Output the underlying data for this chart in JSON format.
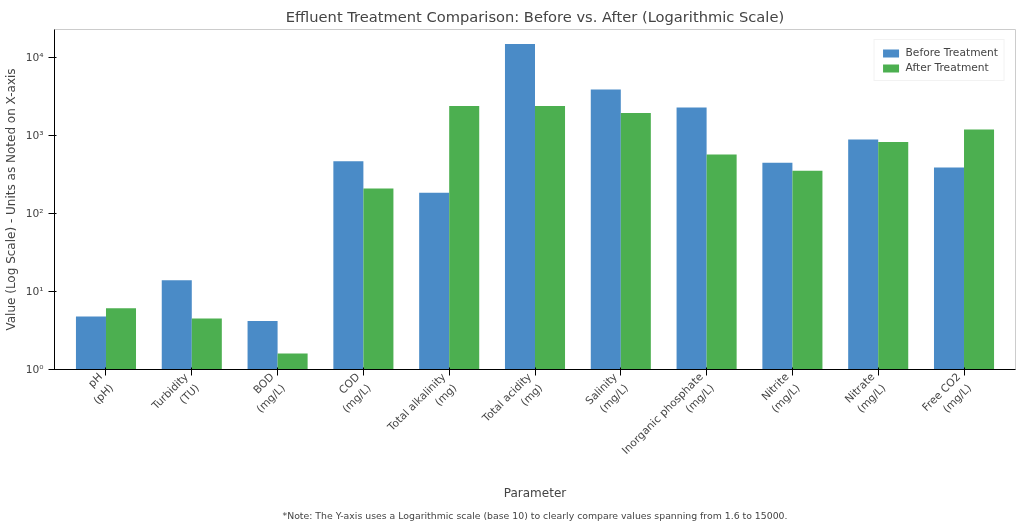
{
  "chart_data": {
    "type": "bar",
    "title": "Effluent Treatment Comparison: Before vs. After (Logarithmic Scale)",
    "xlabel": "Parameter",
    "ylabel": "Value (Log Scale) - Units as Noted on X-axis",
    "categories": [
      "pH\n(pH)",
      "Turbidity\n(TU)",
      "BOD\n(mg/L)",
      "COD\n(mg/L)",
      "Total alkalinity\n(mg)",
      "Total acidity\n(mg)",
      "Salinity\n(mg/L)",
      "Inorganic phosphate\n(mg/L)",
      "Nitrite\n(mg/L)",
      "Nitrate\n(mg/L)",
      "Free CO2\n(mg/L)"
    ],
    "series": [
      {
        "name": "Before Treatment",
        "color": "#4a8bc7",
        "values": [
          4.8,
          14,
          4.2,
          470,
          185,
          15000,
          3900,
          2300,
          450,
          890,
          390
        ]
      },
      {
        "name": "After Treatment",
        "color": "#4caf50",
        "values": [
          6.1,
          4.5,
          1.6,
          210,
          2400,
          2400,
          1950,
          575,
          355,
          830,
          1200
        ]
      }
    ],
    "log": "y",
    "ylim": [
      1,
      23000
    ],
    "yticks": [
      {
        "value": 1,
        "label": "10⁰"
      },
      {
        "value": 10,
        "label": "10¹"
      },
      {
        "value": 100,
        "label": "10²"
      },
      {
        "value": 1000,
        "label": "10³"
      },
      {
        "value": 10000,
        "label": "10⁴"
      }
    ],
    "grid": false,
    "legend": "top right",
    "annotations": [
      "*Note: The Y-axis uses a Logarithmic scale (base 10) to clearly compare values spanning from 1.6 to 15000."
    ]
  }
}
